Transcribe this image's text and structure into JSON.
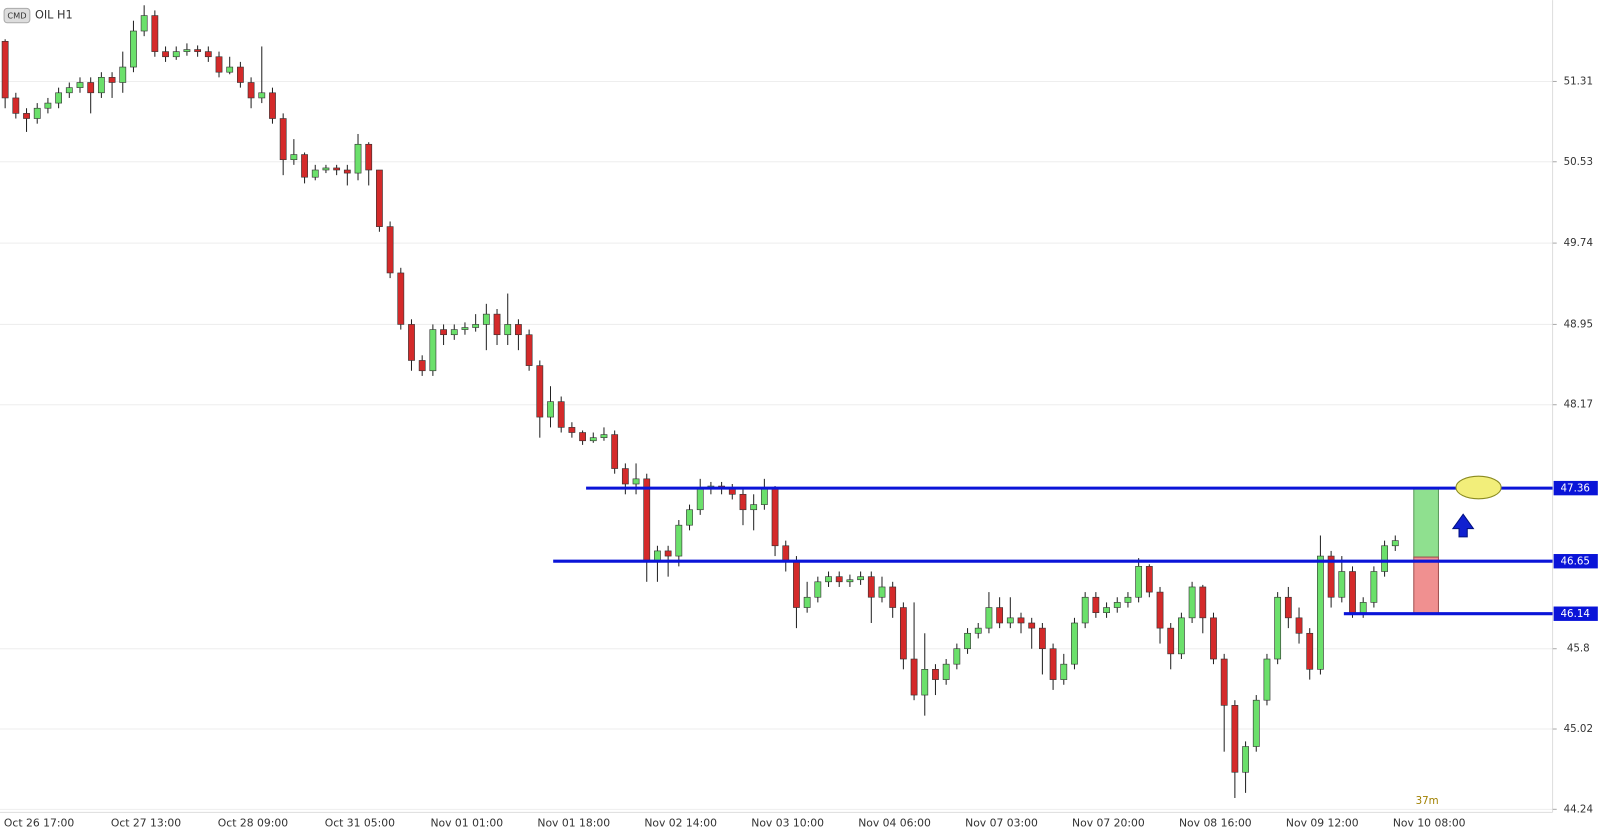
{
  "chart_data": {
    "type": "candlestick",
    "title": "OIL H1",
    "badge": "CMD",
    "countdown": "37m",
    "up_color": "#6be06b",
    "down_color": "#d42a2a",
    "level_color": "#0a14d8",
    "ylim": [
      44.21,
      52.1
    ],
    "yticks": [
      51.31,
      50.53,
      49.74,
      48.95,
      48.17,
      45.8,
      45.02,
      44.24
    ],
    "xticks": [
      "Oct 26 17:00",
      "Oct 27 13:00",
      "Oct 28 09:00",
      "Oct 31 05:00",
      "Nov 01 01:00",
      "Nov 01 18:00",
      "Nov 02 14:00",
      "Nov 03 10:00",
      "Nov 04 06:00",
      "Nov 07 03:00",
      "Nov 07 20:00",
      "Nov 08 16:00",
      "Nov 09 12:00",
      "Nov 10 08:00"
    ],
    "levels": [
      47.36,
      46.65,
      46.14
    ],
    "entry": 46.69,
    "open": [
      51.7,
      51.15,
      51.0,
      50.95,
      51.05,
      51.1,
      51.2,
      51.25,
      51.3,
      51.2,
      51.35,
      51.3,
      51.45,
      51.8,
      51.95,
      51.6,
      51.55,
      51.6,
      51.62,
      51.6,
      51.55,
      51.4,
      51.45,
      51.3,
      51.15,
      51.2,
      50.95,
      50.55,
      50.6,
      50.38,
      50.45,
      50.47,
      50.45,
      50.42,
      50.7,
      50.45,
      49.9,
      49.45,
      48.95,
      48.6,
      48.5,
      48.9,
      48.85,
      48.9,
      48.92,
      48.95,
      49.05,
      48.85,
      48.95,
      48.85,
      48.55,
      48.05,
      48.2,
      47.95,
      47.9,
      47.82,
      47.85,
      47.88,
      47.55,
      47.4,
      47.45,
      46.65,
      46.75,
      46.7,
      47.0,
      47.15,
      47.35,
      47.38,
      47.35,
      47.3,
      47.15,
      47.2,
      47.35,
      46.8,
      46.65,
      46.2,
      46.3,
      46.45,
      46.5,
      46.45,
      46.47,
      46.5,
      46.3,
      46.4,
      46.2,
      45.7,
      45.35,
      45.6,
      45.5,
      45.65,
      45.8,
      45.95,
      46.0,
      46.2,
      46.05,
      46.1,
      46.05,
      46.0,
      45.8,
      45.5,
      45.65,
      46.05,
      46.3,
      46.15,
      46.2,
      46.25,
      46.3,
      46.6,
      46.35,
      46.0,
      45.75,
      46.1,
      46.4,
      46.1,
      45.7,
      45.25,
      44.6,
      44.85,
      45.3,
      45.7,
      46.3,
      46.1,
      45.95,
      45.6,
      46.7,
      46.3,
      46.55,
      46.15,
      46.25,
      46.55,
      46.8
    ],
    "high": [
      51.72,
      51.2,
      51.05,
      51.1,
      51.15,
      51.25,
      51.3,
      51.35,
      51.35,
      51.4,
      51.4,
      51.6,
      51.9,
      52.05,
      52.0,
      51.65,
      51.65,
      51.68,
      51.66,
      51.65,
      51.6,
      51.55,
      51.5,
      51.35,
      51.65,
      51.25,
      51.0,
      50.75,
      50.62,
      50.5,
      50.5,
      50.5,
      50.5,
      50.8,
      50.72,
      50.45,
      49.95,
      49.5,
      49.0,
      48.65,
      48.95,
      48.95,
      48.95,
      48.97,
      49.05,
      49.15,
      49.1,
      49.25,
      49.0,
      48.9,
      48.6,
      48.35,
      48.25,
      48.0,
      47.92,
      47.9,
      47.95,
      47.92,
      47.6,
      47.6,
      47.5,
      46.8,
      46.8,
      47.05,
      47.2,
      47.45,
      47.42,
      47.42,
      47.4,
      47.35,
      47.3,
      47.45,
      47.38,
      46.85,
      46.7,
      46.45,
      46.5,
      46.55,
      46.55,
      46.52,
      46.55,
      46.55,
      46.5,
      46.45,
      46.25,
      46.25,
      45.95,
      45.65,
      45.7,
      45.85,
      46.0,
      46.05,
      46.35,
      46.3,
      46.3,
      46.15,
      46.1,
      46.05,
      45.85,
      45.75,
      46.1,
      46.35,
      46.35,
      46.25,
      46.3,
      46.35,
      46.68,
      46.62,
      46.4,
      46.05,
      46.15,
      46.45,
      46.42,
      46.15,
      45.75,
      45.3,
      44.9,
      45.35,
      45.75,
      46.35,
      46.4,
      46.2,
      46.0,
      46.9,
      46.75,
      46.7,
      46.6,
      46.3,
      46.6,
      46.85,
      46.9
    ],
    "low": [
      51.05,
      50.95,
      50.82,
      50.9,
      51.0,
      51.05,
      51.15,
      51.2,
      51.0,
      51.15,
      51.15,
      51.2,
      51.4,
      51.75,
      51.55,
      51.5,
      51.52,
      51.56,
      51.55,
      51.5,
      51.35,
      51.38,
      51.25,
      51.05,
      51.1,
      50.9,
      50.4,
      50.5,
      50.32,
      50.35,
      50.42,
      50.4,
      50.3,
      50.35,
      50.3,
      49.85,
      49.4,
      48.9,
      48.5,
      48.45,
      48.45,
      48.75,
      48.8,
      48.85,
      48.88,
      48.7,
      48.75,
      48.75,
      48.7,
      48.5,
      47.85,
      47.95,
      47.9,
      47.85,
      47.78,
      47.8,
      47.82,
      47.5,
      47.3,
      47.3,
      46.45,
      46.45,
      46.5,
      46.6,
      46.95,
      47.1,
      47.3,
      47.3,
      47.25,
      47.0,
      46.95,
      47.15,
      46.7,
      46.55,
      46.0,
      46.15,
      46.25,
      46.4,
      46.4,
      46.4,
      46.42,
      46.05,
      46.25,
      46.1,
      45.6,
      45.3,
      45.15,
      45.35,
      45.45,
      45.6,
      45.75,
      45.9,
      45.95,
      46.0,
      46.0,
      45.95,
      45.8,
      45.55,
      45.4,
      45.45,
      45.6,
      46.0,
      46.1,
      46.1,
      46.15,
      46.2,
      46.25,
      46.3,
      45.85,
      45.6,
      45.7,
      46.05,
      45.95,
      45.65,
      44.8,
      44.35,
      44.4,
      44.8,
      45.25,
      45.65,
      46.0,
      45.85,
      45.5,
      45.55,
      46.2,
      46.25,
      46.1,
      46.1,
      46.2,
      46.5,
      46.75
    ],
    "close": [
      51.15,
      51.0,
      50.95,
      51.05,
      51.1,
      51.2,
      51.25,
      51.3,
      51.2,
      51.35,
      51.3,
      51.45,
      51.8,
      51.95,
      51.6,
      51.55,
      51.6,
      51.62,
      51.6,
      51.55,
      51.4,
      51.45,
      51.3,
      51.15,
      51.2,
      50.95,
      50.55,
      50.6,
      50.38,
      50.45,
      50.47,
      50.45,
      50.42,
      50.7,
      50.45,
      49.9,
      49.45,
      48.95,
      48.6,
      48.5,
      48.9,
      48.85,
      48.9,
      48.92,
      48.95,
      49.05,
      48.85,
      48.95,
      48.85,
      48.55,
      48.05,
      48.2,
      47.95,
      47.9,
      47.82,
      47.85,
      47.88,
      47.55,
      47.4,
      47.45,
      46.65,
      46.75,
      46.7,
      47.0,
      47.15,
      47.35,
      47.38,
      47.35,
      47.3,
      47.15,
      47.2,
      47.35,
      46.8,
      46.65,
      46.2,
      46.3,
      46.45,
      46.5,
      46.45,
      46.47,
      46.5,
      46.3,
      46.4,
      46.2,
      45.7,
      45.35,
      45.6,
      45.5,
      45.65,
      45.8,
      45.95,
      46.0,
      46.2,
      46.05,
      46.1,
      46.05,
      46.0,
      45.8,
      45.5,
      45.65,
      46.05,
      46.3,
      46.15,
      46.2,
      46.25,
      46.3,
      46.6,
      46.35,
      46.0,
      45.75,
      46.1,
      46.4,
      46.1,
      45.7,
      45.25,
      44.6,
      44.85,
      45.3,
      45.7,
      46.3,
      46.1,
      45.95,
      45.6,
      46.7,
      46.3,
      46.55,
      46.15,
      46.25,
      46.55,
      46.8,
      46.85
    ]
  }
}
